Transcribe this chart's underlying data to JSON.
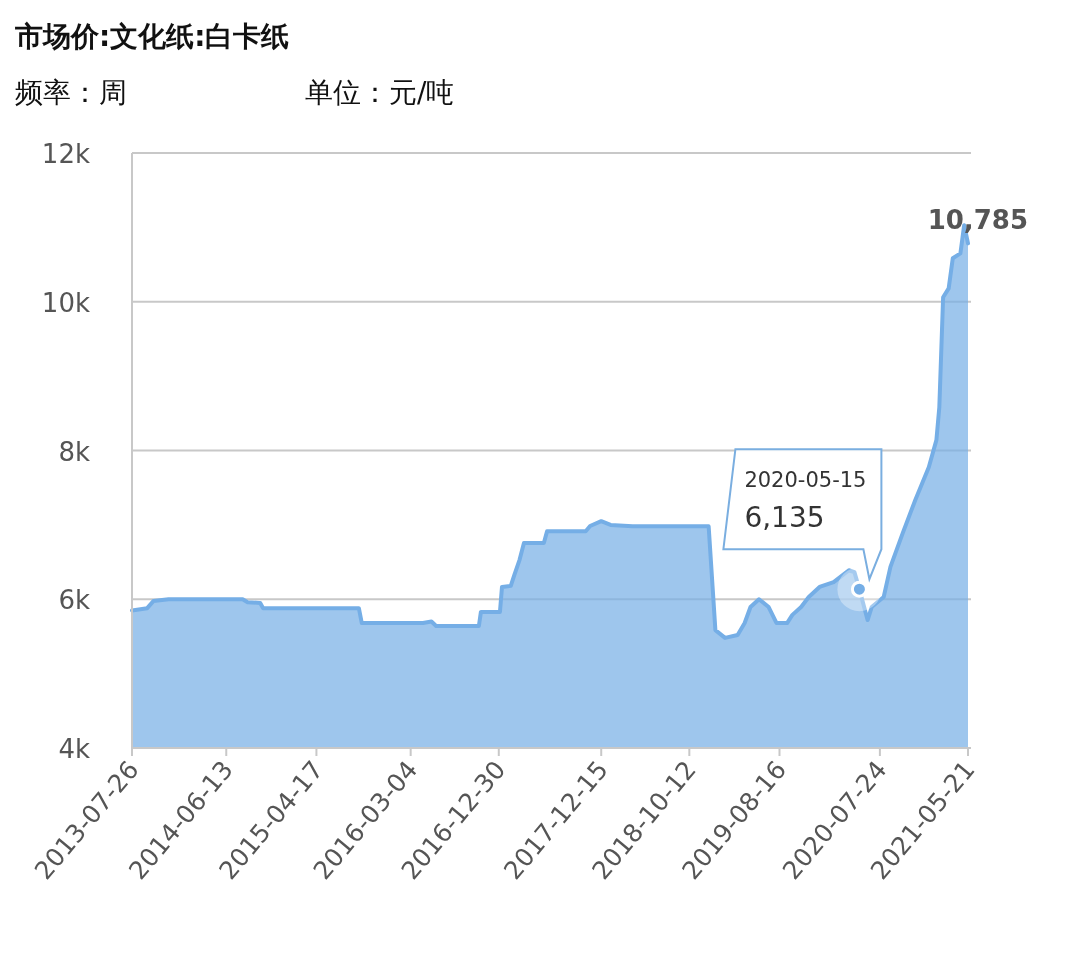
{
  "chart_data": {
    "type": "area",
    "title": "市场价:文化纸:白卡纸",
    "annotations": [
      "频率：周",
      "单位：元/吨",
      {
        "text": "2020-05-15\n6,135",
        "x": "2020-05-15",
        "y": 6135
      },
      {
        "text": "10,785",
        "x": "2021-05-21",
        "y": 10785
      }
    ],
    "x": [
      "2013-07-26",
      "2013-09-16",
      "2013-10-07",
      "2013-11-28",
      "2014-08-08",
      "2014-08-25",
      "2014-10-07",
      "2014-10-17",
      "2015-09-09",
      "2015-09-19",
      "2016-04-15",
      "2016-05-14",
      "2016-05-30",
      "2016-10-23",
      "2016-10-30",
      "2017-01-03",
      "2017-01-10",
      "2017-02-09",
      "2017-02-21",
      "2017-03-11",
      "2017-03-26",
      "2017-06-02",
      "2017-06-13",
      "2017-10-23",
      "2017-11-07",
      "2017-12-15",
      "2018-01-16",
      "2018-04-01",
      "2018-12-17",
      "2019-01-09",
      "2019-02-11",
      "2019-03-26",
      "2019-04-19",
      "2019-05-09",
      "2019-06-07",
      "2019-07-10",
      "2019-08-06",
      "2019-09-11",
      "2019-09-29",
      "2019-10-29",
      "2019-11-24",
      "2019-12-31",
      "2020-02-17",
      "2020-04-09",
      "2020-04-28",
      "2020-05-15",
      "2020-06-12",
      "2020-06-26",
      "2020-08-06",
      "2020-08-29",
      "2020-10-10",
      "2020-11-22",
      "2021-01-07",
      "2021-02-02",
      "2021-02-12",
      "2021-02-25",
      "2021-03-16",
      "2021-03-30",
      "2021-04-25",
      "2021-05-08",
      "2021-05-21"
    ],
    "series": [
      {
        "color": "#75aee6",
        "values": [
          5850,
          5880,
          5975,
          6000,
          6000,
          5960,
          5950,
          5880,
          5880,
          5680,
          5680,
          5700,
          5640,
          5640,
          5830,
          5830,
          6165,
          6180,
          6325,
          6530,
          6755,
          6755,
          6915,
          6915,
          6985,
          7050,
          7000,
          6980,
          6980,
          5585,
          5480,
          5520,
          5680,
          5895,
          6000,
          5895,
          5680,
          5680,
          5790,
          5895,
          6030,
          6165,
          6230,
          6390,
          6365,
          6135,
          5720,
          5895,
          6030,
          6435,
          6890,
          7335,
          7775,
          8140,
          8580,
          10060,
          10180,
          10585,
          10650,
          11030,
          10785
        ]
      }
    ],
    "xlim": [
      "2013-07-26",
      "2021-05-21"
    ],
    "xticks": [
      "2013-07-26",
      "2014-06-13",
      "2015-04-17",
      "2016-03-04",
      "2016-12-30",
      "2017-12-15",
      "2018-10-12",
      "2019-08-16",
      "2020-07-24",
      "2021-05-21"
    ],
    "ylim": [
      4000,
      12000
    ],
    "yticks": [
      {
        "value": 4000,
        "label": "4k"
      },
      {
        "value": 6000,
        "label": "6k"
      },
      {
        "value": 8000,
        "label": "8k"
      },
      {
        "value": 10000,
        "label": "10k"
      },
      {
        "value": 12000,
        "label": "12k"
      }
    ],
    "grid": "y",
    "marker": "none",
    "line_style": "solid"
  }
}
